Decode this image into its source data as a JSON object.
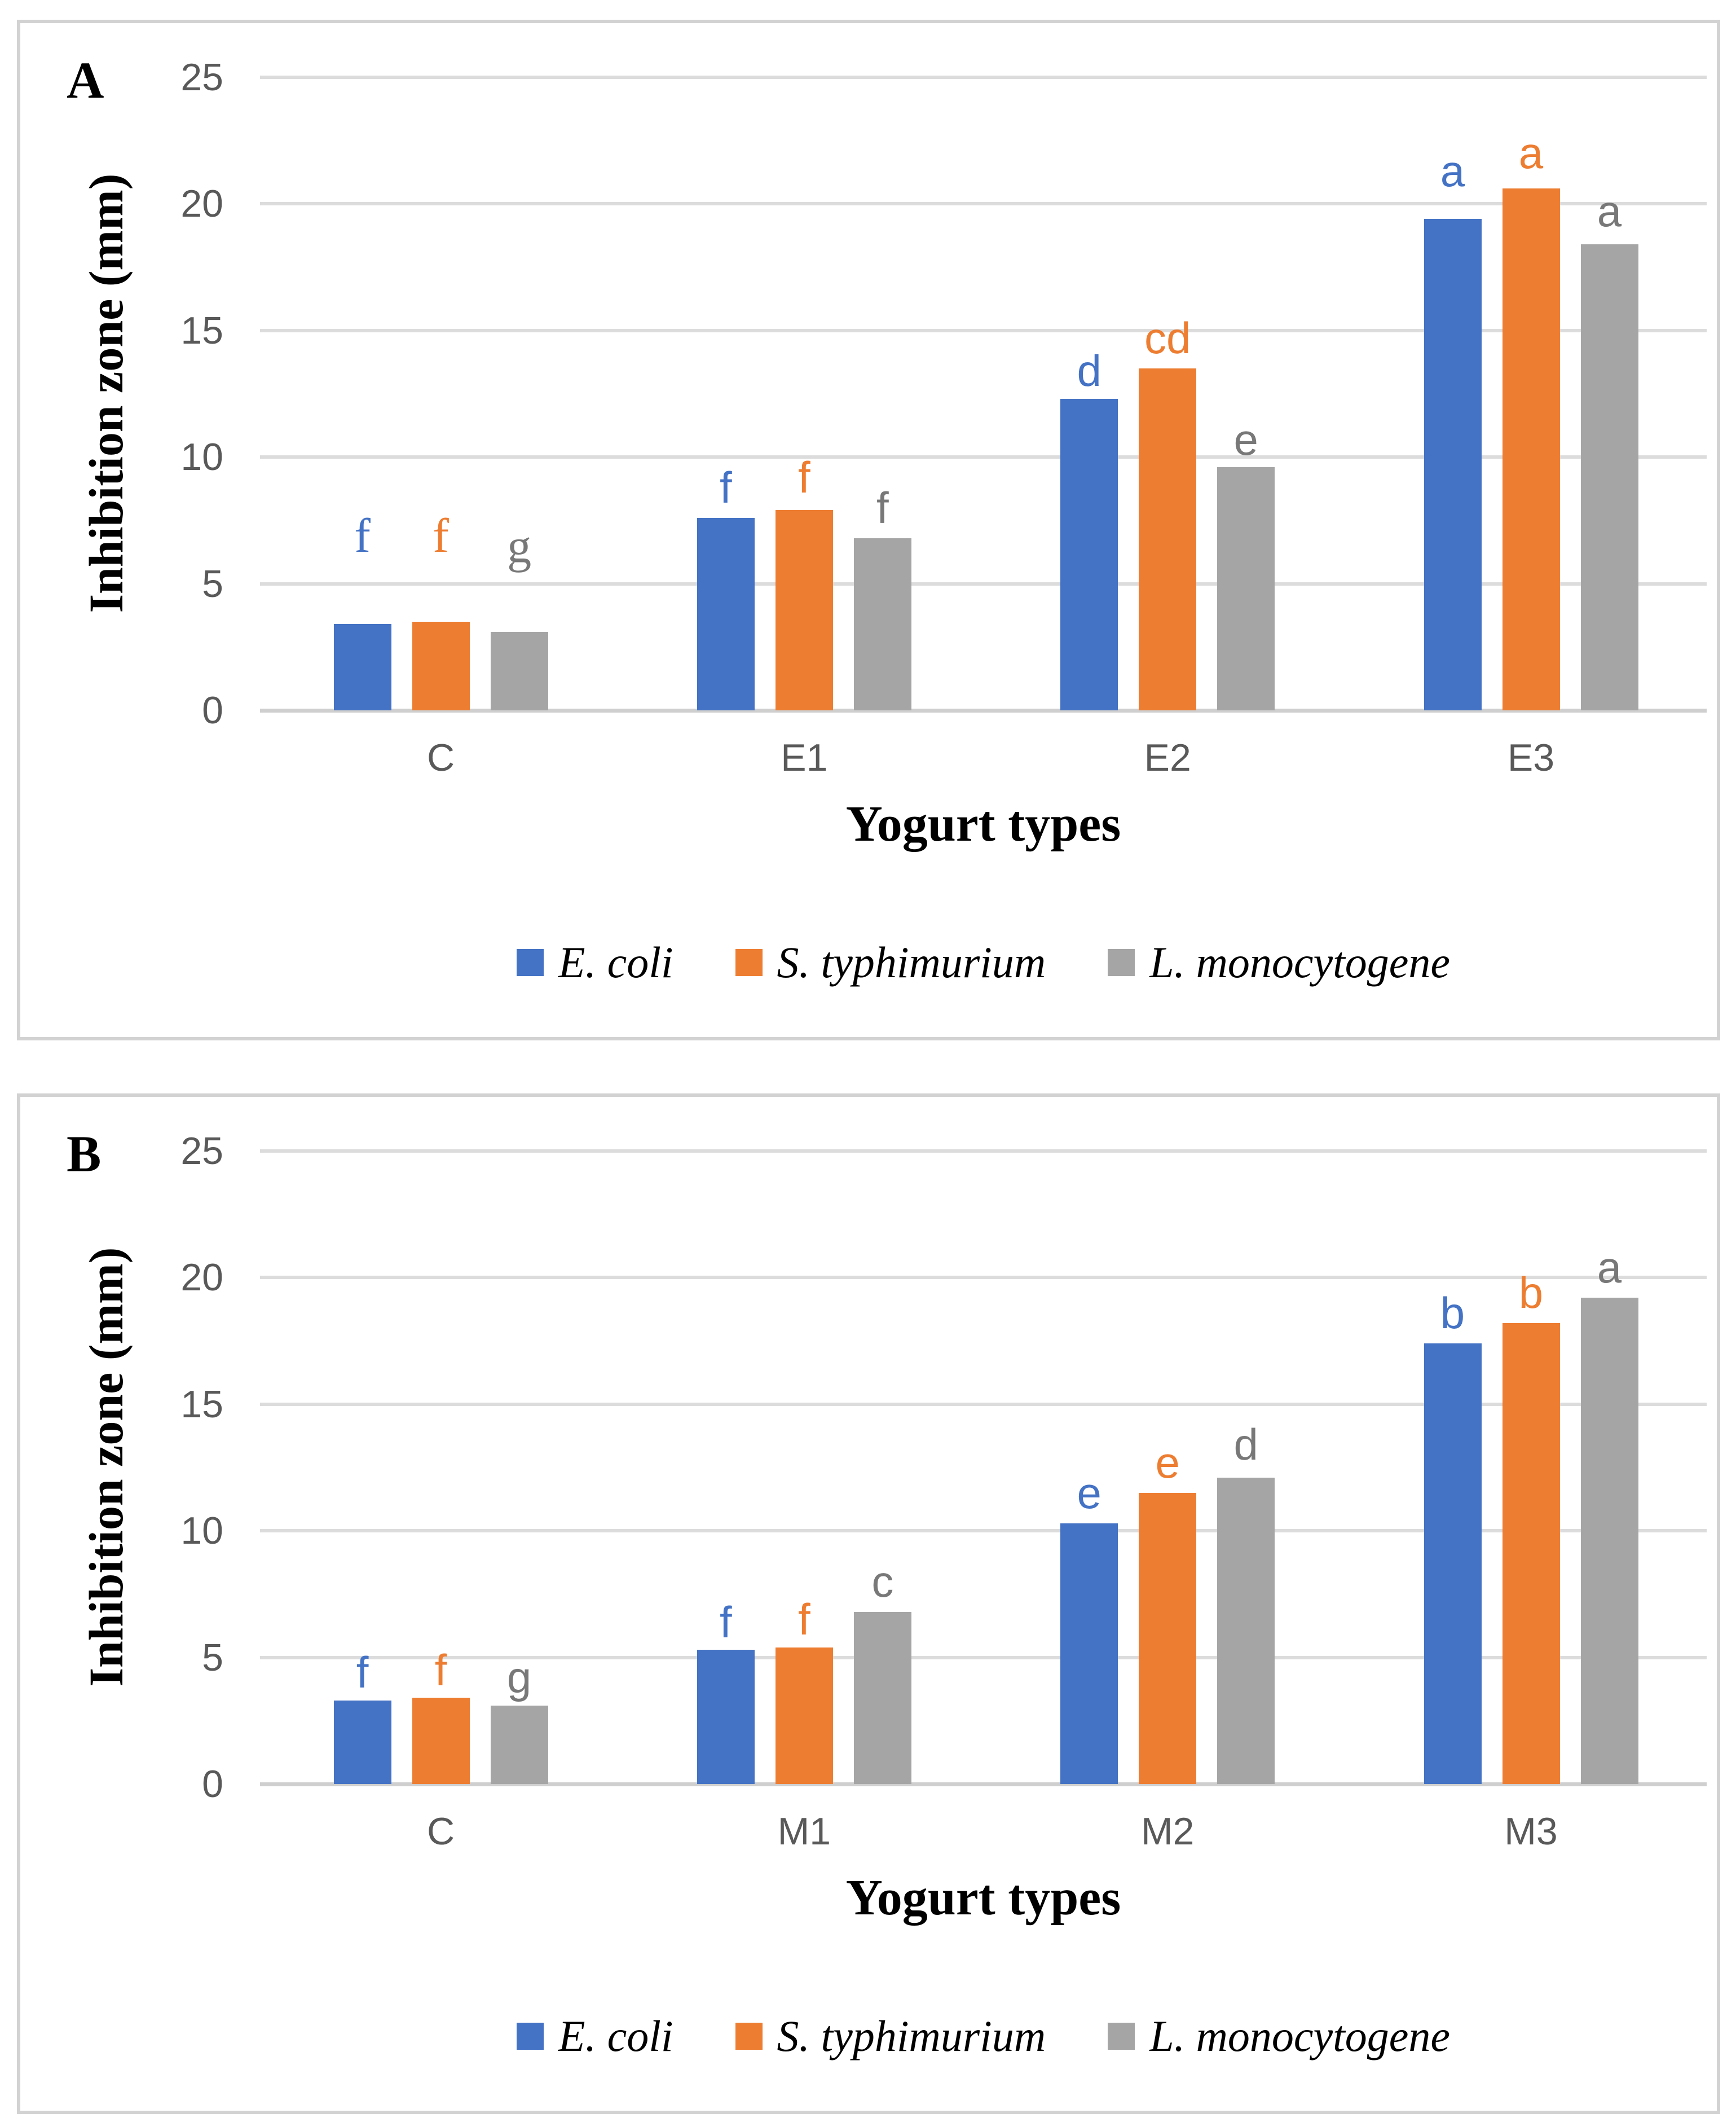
{
  "figure": {
    "background_color": "#ffffff",
    "panel_border_color": "#d2d2d2",
    "gridline_color": "#dcdcdc",
    "tick_text_color": "#595959"
  },
  "chart_data": [
    {
      "type": "bar",
      "panel_label": "A",
      "title": "",
      "xlabel": "Yogurt types",
      "ylabel": "Inhibition zone (mm)",
      "ylim": [
        0,
        25
      ],
      "yticks": [
        0,
        5,
        10,
        15,
        20,
        25
      ],
      "grid": true,
      "legend_position": "bottom",
      "categories": [
        "C",
        "E1",
        "E2",
        "E3"
      ],
      "serif_letter_groups": [
        0
      ],
      "series": [
        {
          "name": "E. coli",
          "color": "#4472C4",
          "letter_color": "#4472C4",
          "values": [
            3.4,
            7.6,
            12.3,
            19.4
          ],
          "letters": [
            "f",
            "f",
            "d",
            "a"
          ],
          "letter_y": [
            6.9,
            8.8,
            13.4,
            21.3
          ]
        },
        {
          "name": "S. typhimurium",
          "color": "#ED7D31",
          "letter_color": "#ED7D31",
          "values": [
            3.5,
            7.9,
            13.5,
            20.6
          ],
          "letters": [
            "f",
            "f",
            "cd",
            "a"
          ],
          "letter_y": [
            6.9,
            9.2,
            14.7,
            22.0
          ]
        },
        {
          "name": "L. monocytogene",
          "color": "#A5A5A5",
          "letter_color": "#787878",
          "values": [
            3.1,
            6.8,
            9.6,
            18.4
          ],
          "letters": [
            "g",
            "f",
            "e",
            "a"
          ],
          "letter_y": [
            6.5,
            8.0,
            10.7,
            19.7
          ]
        }
      ]
    },
    {
      "type": "bar",
      "panel_label": "B",
      "title": "",
      "xlabel": "Yogurt types",
      "ylabel": "Inhibition zone (mm)",
      "ylim": [
        0,
        25
      ],
      "yticks": [
        0,
        5,
        10,
        15,
        20,
        25
      ],
      "grid": true,
      "legend_position": "bottom",
      "categories": [
        "C",
        "M1",
        "M2",
        "M3"
      ],
      "serif_letter_groups": [
        0
      ],
      "series": [
        {
          "name": "E. coli",
          "color": "#4472C4",
          "letter_color": "#4472C4",
          "values": [
            3.3,
            5.3,
            10.3,
            17.4
          ],
          "letters": [
            "f",
            "f",
            "e",
            "b"
          ],
          "letter_y": [
            4.4,
            6.4,
            11.5,
            18.6
          ]
        },
        {
          "name": "S. typhimurium",
          "color": "#ED7D31",
          "letter_color": "#ED7D31",
          "values": [
            3.4,
            5.4,
            11.5,
            18.2
          ],
          "letters": [
            "f",
            "f",
            "e",
            "b"
          ],
          "letter_y": [
            4.5,
            6.5,
            12.7,
            19.4
          ]
        },
        {
          "name": "L. monocytogene",
          "color": "#A5A5A5",
          "letter_color": "#787878",
          "values": [
            3.1,
            6.8,
            12.1,
            19.2
          ],
          "letters": [
            "g",
            "c",
            "d",
            "a"
          ],
          "letter_y": [
            4.2,
            8.0,
            13.4,
            20.4
          ]
        }
      ]
    }
  ]
}
